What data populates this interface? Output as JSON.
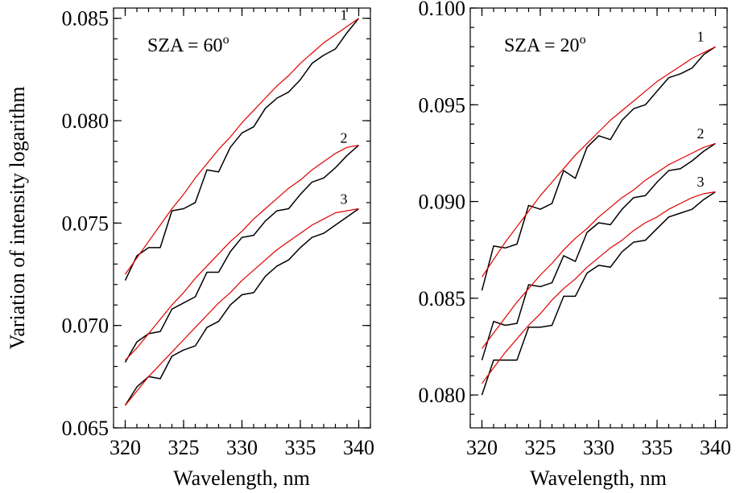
{
  "chart_data": [
    {
      "type": "line",
      "annotation": "SZA = 60",
      "annotation_sup": "o",
      "xlabel": "Wavelength, nm",
      "ylabel": "Variation of intensity logarithm",
      "xlim": [
        319,
        341
      ],
      "ylim": [
        0.065,
        0.0855
      ],
      "xticks": [
        320,
        325,
        330,
        335,
        340
      ],
      "xtick_labels": [
        "320",
        "325",
        "330",
        "335",
        "340"
      ],
      "yticks": [
        0.065,
        0.07,
        0.075,
        0.08,
        0.085
      ],
      "ytick_labels": [
        "0.065",
        "0.070",
        "0.075",
        "0.080",
        "0.085"
      ],
      "x": [
        320,
        321,
        322,
        323,
        324,
        325,
        326,
        327,
        328,
        329,
        330,
        331,
        332,
        333,
        334,
        335,
        336,
        337,
        338,
        339,
        340
      ],
      "series": [
        {
          "name": "1",
          "color": "#000000",
          "values": [
            0.0722,
            0.0734,
            0.0738,
            0.0738,
            0.0756,
            0.0757,
            0.076,
            0.0776,
            0.0775,
            0.0787,
            0.0794,
            0.0797,
            0.0806,
            0.0811,
            0.0814,
            0.082,
            0.0828,
            0.0832,
            0.0835,
            0.0843,
            0.085
          ]
        },
        {
          "name": "",
          "color": "#e00000",
          "values": [
            0.0725,
            0.0733,
            0.0741,
            0.0749,
            0.0757,
            0.0764,
            0.0772,
            0.0779,
            0.0786,
            0.0792,
            0.0799,
            0.0805,
            0.0811,
            0.0817,
            0.0822,
            0.0828,
            0.0833,
            0.0838,
            0.0842,
            0.0846,
            0.085
          ]
        },
        {
          "name": "2",
          "color": "#000000",
          "values": [
            0.0682,
            0.0692,
            0.0696,
            0.0697,
            0.0708,
            0.0711,
            0.0714,
            0.0726,
            0.0726,
            0.0736,
            0.0743,
            0.0744,
            0.0751,
            0.0756,
            0.0757,
            0.0764,
            0.077,
            0.0772,
            0.0777,
            0.0783,
            0.0788
          ]
        },
        {
          "name": "",
          "color": "#e00000",
          "values": [
            0.0683,
            0.0689,
            0.0696,
            0.0703,
            0.071,
            0.0716,
            0.0723,
            0.0729,
            0.0735,
            0.0741,
            0.0746,
            0.0752,
            0.0757,
            0.0762,
            0.0767,
            0.0771,
            0.0776,
            0.078,
            0.0784,
            0.0787,
            0.0788
          ]
        },
        {
          "name": "3",
          "color": "#000000",
          "values": [
            0.0661,
            0.067,
            0.0675,
            0.0674,
            0.0685,
            0.0688,
            0.069,
            0.0699,
            0.0702,
            0.071,
            0.0715,
            0.0716,
            0.0724,
            0.0729,
            0.0732,
            0.0738,
            0.0743,
            0.0745,
            0.0749,
            0.0753,
            0.0757
          ]
        },
        {
          "name": "",
          "color": "#e00000",
          "values": [
            0.0661,
            0.0668,
            0.0675,
            0.0681,
            0.0687,
            0.0693,
            0.0699,
            0.0705,
            0.0711,
            0.0716,
            0.0722,
            0.0727,
            0.0732,
            0.0737,
            0.0741,
            0.0745,
            0.0749,
            0.0752,
            0.0755,
            0.0756,
            0.0757
          ]
        }
      ]
    },
    {
      "type": "line",
      "annotation": "SZA = 20",
      "annotation_sup": "o",
      "xlabel": "Wavelength, nm",
      "ylabel": "",
      "xlim": [
        319,
        341
      ],
      "ylim": [
        0.0783,
        0.1
      ],
      "xticks": [
        320,
        325,
        330,
        335,
        340
      ],
      "xtick_labels": [
        "320",
        "325",
        "330",
        "335",
        "340"
      ],
      "yticks": [
        0.08,
        0.085,
        0.09,
        0.095,
        0.1
      ],
      "ytick_labels": [
        "0.080",
        "0.085",
        "0.090",
        "0.095",
        "0.100"
      ],
      "x": [
        320,
        321,
        322,
        323,
        324,
        325,
        326,
        327,
        328,
        329,
        330,
        331,
        332,
        333,
        334,
        335,
        336,
        337,
        338,
        339,
        340
      ],
      "series": [
        {
          "name": "1",
          "color": "#000000",
          "values": [
            0.0854,
            0.0877,
            0.0876,
            0.0878,
            0.0898,
            0.0896,
            0.0899,
            0.0916,
            0.0912,
            0.0928,
            0.0934,
            0.0932,
            0.0942,
            0.0948,
            0.095,
            0.0957,
            0.0964,
            0.0966,
            0.0969,
            0.0976,
            0.098
          ]
        },
        {
          "name": "",
          "color": "#e00000",
          "values": [
            0.0861,
            0.087,
            0.0879,
            0.0887,
            0.0895,
            0.0903,
            0.091,
            0.0917,
            0.0924,
            0.093,
            0.0936,
            0.0942,
            0.0947,
            0.0952,
            0.0957,
            0.0962,
            0.0966,
            0.097,
            0.0974,
            0.0977,
            0.098
          ]
        },
        {
          "name": "2",
          "color": "#000000",
          "values": [
            0.0818,
            0.0838,
            0.0836,
            0.0837,
            0.0857,
            0.0856,
            0.0858,
            0.0872,
            0.0869,
            0.0884,
            0.0889,
            0.0888,
            0.0896,
            0.0902,
            0.0903,
            0.091,
            0.0916,
            0.0917,
            0.0921,
            0.0926,
            0.093
          ]
        },
        {
          "name": "",
          "color": "#e00000",
          "values": [
            0.0824,
            0.0832,
            0.084,
            0.0848,
            0.0855,
            0.0862,
            0.0868,
            0.0875,
            0.0881,
            0.0886,
            0.0892,
            0.0897,
            0.0902,
            0.0906,
            0.0911,
            0.0915,
            0.0919,
            0.0922,
            0.0925,
            0.0928,
            0.093
          ]
        },
        {
          "name": "3",
          "color": "#000000",
          "values": [
            0.08,
            0.0818,
            0.0818,
            0.0818,
            0.0835,
            0.0835,
            0.0836,
            0.0851,
            0.0851,
            0.0863,
            0.0867,
            0.0866,
            0.0874,
            0.0879,
            0.088,
            0.0886,
            0.0892,
            0.0894,
            0.0896,
            0.0901,
            0.0905
          ]
        },
        {
          "name": "",
          "color": "#e00000",
          "values": [
            0.0806,
            0.0814,
            0.0822,
            0.0829,
            0.0836,
            0.0842,
            0.0849,
            0.0855,
            0.086,
            0.0866,
            0.0871,
            0.0876,
            0.088,
            0.0885,
            0.0889,
            0.0892,
            0.0896,
            0.0899,
            0.0902,
            0.0904,
            0.0905
          ]
        }
      ]
    }
  ]
}
